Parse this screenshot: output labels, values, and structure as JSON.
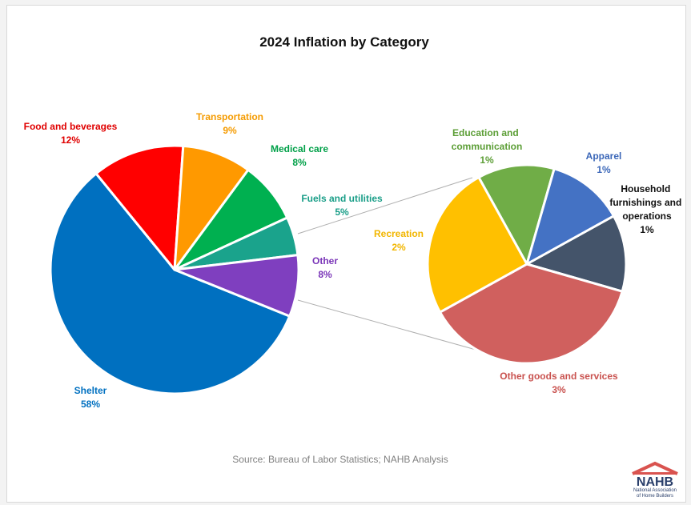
{
  "chart_data": [
    {
      "type": "pie",
      "title": "2024 Inflation by Category",
      "slices": [
        {
          "label": "Shelter",
          "value": 58,
          "value_label": "58%",
          "color": "#0070c0"
        },
        {
          "label": "Food and beverages",
          "value": 12,
          "value_label": "12%",
          "color": "#ff0000"
        },
        {
          "label": "Transportation",
          "value": 9,
          "value_label": "9%",
          "color": "#ff9900"
        },
        {
          "label": "Medical care",
          "value": 8,
          "value_label": "8%",
          "color": "#00b050"
        },
        {
          "label": "Fuels and utilities",
          "value": 5,
          "value_label": "5%",
          "color": "#1aa38c"
        },
        {
          "label": "Other",
          "value": 8,
          "value_label": "8%",
          "color": "#7f3fbf"
        }
      ]
    },
    {
      "type": "pie",
      "title": "",
      "slices": [
        {
          "label": "Education and communication",
          "value": 1,
          "value_label": "1%",
          "color": "#70ad47"
        },
        {
          "label": "Apparel",
          "value": 1,
          "value_label": "1%",
          "color": "#4472c4"
        },
        {
          "label": "Household furnishings and operations",
          "value": 1,
          "value_label": "1%",
          "color": "#44546a"
        },
        {
          "label": "Other goods and services",
          "value": 3,
          "value_label": "3%",
          "color": "#d0605e"
        },
        {
          "label": "Recreation",
          "value": 2,
          "value_label": "2%",
          "color": "#ffc000"
        }
      ]
    }
  ],
  "source": "Source: Bureau of Labor Statistics; NAHB Analysis",
  "logo": {
    "name": "NAHB",
    "subtitle_line1": "National Association",
    "subtitle_line2": "of Home Builders"
  }
}
